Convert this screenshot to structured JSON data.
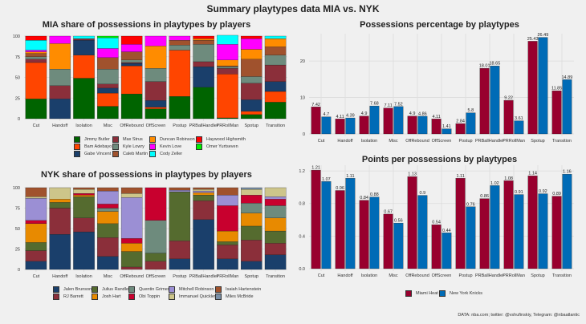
{
  "title": "Summary playtypes data MIA vs. NYK",
  "caption": "DATA: nba.com; twitter: @vshufinskiy, Telegram: @nbaatlantic",
  "chart_data": [
    {
      "id": "mia",
      "type": "bar",
      "stacked": true,
      "title": "MIA share of possessions in playtypes by players",
      "categories": [
        "Cut",
        "Handoff",
        "Isolation",
        "Misc",
        "OffRebound",
        "OffScreen",
        "Postup",
        "PRBallHandler",
        "PRRollMan",
        "Spotup",
        "Transition"
      ],
      "ylim": [
        0,
        100
      ],
      "yticks": [
        "0",
        "25",
        "50",
        "75",
        "100"
      ],
      "legend_position": "bottom",
      "series": [
        {
          "name": "Jimmy Butler",
          "color": "#006400",
          "values": [
            24,
            0,
            49,
            15,
            30,
            12,
            27,
            38,
            1,
            5,
            20
          ]
        },
        {
          "name": "Bam Adebayo",
          "color": "#ff4500",
          "values": [
            44,
            0,
            28,
            16,
            34,
            2,
            56,
            0,
            53,
            4,
            13
          ]
        },
        {
          "name": "Gabe Vincent",
          "color": "#1a3f6b",
          "values": [
            0,
            24,
            18,
            6,
            3,
            8,
            0,
            25,
            0,
            14,
            12
          ]
        },
        {
          "name": "Max Strus",
          "color": "#8b2f3a",
          "values": [
            4,
            16,
            2,
            5,
            1,
            23,
            0,
            6,
            7,
            20,
            20
          ]
        },
        {
          "name": "Kyle Lowry",
          "color": "#6e8b7d",
          "values": [
            3,
            20,
            0,
            18,
            3,
            16,
            6,
            21,
            2,
            8,
            12
          ]
        },
        {
          "name": "Caleb Martin",
          "color": "#a0522d",
          "values": [
            4,
            0,
            0,
            14,
            10,
            0,
            6,
            5,
            1,
            21,
            10
          ]
        },
        {
          "name": "Duncan Robinson",
          "color": "#ff8c00",
          "values": [
            2,
            31,
            0,
            0,
            0,
            27,
            0,
            2,
            7,
            12,
            10
          ]
        },
        {
          "name": "Kevin Love",
          "color": "#ff00ff",
          "values": [
            2,
            9,
            0,
            11,
            9,
            12,
            5,
            0,
            19,
            13,
            0
          ]
        },
        {
          "name": "Cody Zeller",
          "color": "#00ffff",
          "values": [
            12,
            0,
            3,
            13,
            0,
            0,
            0,
            0,
            11,
            0,
            3
          ]
        },
        {
          "name": "Haywood Highsmith",
          "color": "#ff0000",
          "values": [
            5,
            0,
            0,
            0,
            10,
            0,
            0,
            3,
            0,
            3,
            0
          ]
        },
        {
          "name": "Omer Yurtseven",
          "color": "#00ee00",
          "values": [
            0,
            0,
            0,
            2,
            0,
            0,
            0,
            0,
            0,
            0,
            0
          ]
        }
      ]
    },
    {
      "id": "nyk",
      "type": "bar",
      "stacked": true,
      "title": "NYK share of possessions in playtypes by players",
      "categories": [
        "Cut",
        "Handoff",
        "Isolation",
        "Misc",
        "OffRebound",
        "OffScreen",
        "Postup",
        "PRBallHandler",
        "PRRollMan",
        "Spotup",
        "Transition"
      ],
      "ylim": [
        0,
        100
      ],
      "yticks": [
        "0",
        "25",
        "50",
        "75",
        "100"
      ],
      "legend_position": "bottom",
      "series": [
        {
          "name": "Jalen Brunson",
          "color": "#1a3f6b",
          "values": [
            10,
            43,
            46,
            16,
            0,
            0,
            13,
            61,
            13,
            10,
            18
          ]
        },
        {
          "name": "RJ Barrett",
          "color": "#8b2f3a",
          "values": [
            13,
            32,
            17,
            23,
            3,
            10,
            22,
            23,
            17,
            26,
            14
          ]
        },
        {
          "name": "Julius Randle",
          "color": "#556b2f",
          "values": [
            10,
            7,
            26,
            17,
            19,
            10,
            60,
            7,
            4,
            17,
            15
          ]
        },
        {
          "name": "Josh Hart",
          "color": "#e88a00",
          "values": [
            23,
            4,
            2,
            15,
            10,
            0,
            0,
            3,
            13,
            16,
            16
          ]
        },
        {
          "name": "Quentin Grimes",
          "color": "#6e8b7d",
          "values": [
            0,
            0,
            0,
            4,
            0,
            40,
            0,
            0,
            0,
            12,
            15
          ]
        },
        {
          "name": "Obi Toppin",
          "color": "#c8002e",
          "values": [
            4,
            0,
            2,
            5,
            6,
            40,
            0,
            0,
            31,
            10,
            8
          ]
        },
        {
          "name": "Mitchell Robinson",
          "color": "#9b8fd4",
          "values": [
            27,
            0,
            0,
            16,
            50,
            0,
            2,
            2,
            13,
            0,
            3
          ]
        },
        {
          "name": "Immanuel Quickley",
          "color": "#cdc58a",
          "values": [
            2,
            14,
            5,
            0,
            5,
            0,
            0,
            2,
            0,
            7,
            11
          ]
        },
        {
          "name": "Isaiah Hartenstein",
          "color": "#a0522d",
          "values": [
            11,
            0,
            2,
            4,
            7,
            0,
            3,
            2,
            9,
            0,
            0
          ]
        },
        {
          "name": "Miles McBride",
          "color": "#7a90a8",
          "values": [
            0,
            0,
            0,
            0,
            0,
            0,
            0,
            0,
            0,
            2,
            0
          ]
        }
      ]
    },
    {
      "id": "poss",
      "type": "bar",
      "title": "Possessions percentage by playtypes",
      "categories": [
        "Cut",
        "Handoff",
        "Isolation",
        "Misc",
        "OffRebound",
        "OffScreen",
        "Postup",
        "PRBallHandler",
        "PRRollMan",
        "Spotup",
        "Transition"
      ],
      "ylim": [
        0,
        27.5
      ],
      "yticks": [
        "0",
        "10",
        "20"
      ],
      "series": [
        {
          "name": "Miami Heat",
          "color": "#98002e",
          "values": [
            7.42,
            4.11,
            4.9,
            7.11,
            4.9,
            4.11,
            2.84,
            18.01,
            9.22,
            25.43,
            11.85
          ],
          "labels": [
            "7.42",
            "4.11",
            "4.9",
            "7.11",
            "4.9",
            "4.11",
            "2.84",
            "18.01",
            "9.22",
            "25.43",
            "11.85"
          ]
        },
        {
          "name": "New York Knicks",
          "color": "#006bb6",
          "values": [
            4.7,
            4.39,
            7.68,
            7.52,
            4.86,
            1.41,
            5.8,
            18.65,
            3.61,
            26.49,
            14.89
          ],
          "labels": [
            "4.7",
            "4.39",
            "7.68",
            "7.52",
            "4.86",
            "1.41",
            "5.8",
            "18.65",
            "3.61",
            "26.49",
            "14.89"
          ]
        }
      ]
    },
    {
      "id": "ppp",
      "type": "bar",
      "title": "Points per possessions by playtypes",
      "categories": [
        "Cut",
        "Handoff",
        "Isolation",
        "Misc",
        "OffRebound",
        "OffScreen",
        "Postup",
        "PRBallHandler",
        "PRRollMan",
        "Spotup",
        "Transition"
      ],
      "ylim": [
        0,
        1.27
      ],
      "yticks": [
        "0.0",
        "0.4",
        "0.8",
        "1.2"
      ],
      "legend_position": "bottom",
      "series": [
        {
          "name": "Miami Heat",
          "color": "#98002e",
          "values": [
            1.21,
            0.96,
            0.84,
            0.67,
            1.13,
            0.54,
            1.11,
            0.86,
            1.08,
            1.14,
            0.89
          ],
          "labels": [
            "1.21",
            "0.96",
            "0.84",
            "0.67",
            "1.13",
            "0.54",
            "1.11",
            "0.86",
            "1.08",
            "1.14",
            "0.89"
          ]
        },
        {
          "name": "New York Knicks",
          "color": "#006bb6",
          "values": [
            1.07,
            1.11,
            0.88,
            0.56,
            0.9,
            0.44,
            0.76,
            1.02,
            0.91,
            0.92,
            1.16
          ],
          "labels": [
            "1.07",
            "1.11",
            "0.88",
            "0.56",
            "0.9",
            "0.44",
            "0.76",
            "1.02",
            "0.91",
            "0.92",
            "1.16"
          ]
        }
      ]
    }
  ]
}
